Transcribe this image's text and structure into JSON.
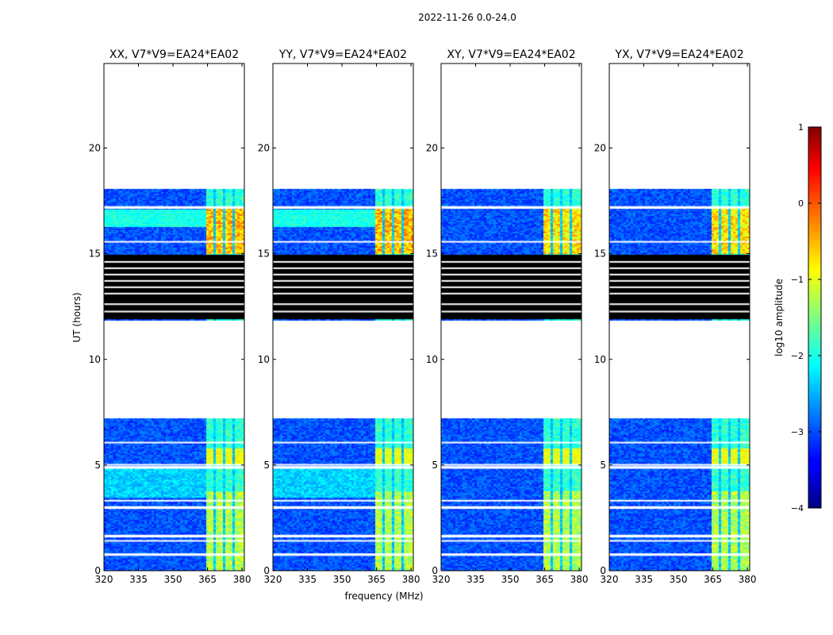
{
  "figure": {
    "suptitle": "2022-11-26 0.0-24.0",
    "xlabel": "frequency (MHz)",
    "ylabel": "UT (hours)"
  },
  "chart_data": {
    "type": "heatmap",
    "panels": [
      {
        "title": "XX, V7*V9=EA24*EA02",
        "pol": "XX",
        "cross": false
      },
      {
        "title": "YY, V7*V9=EA24*EA02",
        "pol": "YY",
        "cross": false
      },
      {
        "title": "XY, V7*V9=EA24*EA02",
        "pol": "XY",
        "cross": true
      },
      {
        "title": "YX, V7*V9=EA24*EA02",
        "pol": "YX",
        "cross": true
      }
    ],
    "x": {
      "min": 320,
      "max": 381,
      "ticks": [
        320,
        335,
        350,
        365,
        380
      ],
      "tick_labels": [
        "320",
        "335",
        "350",
        "365",
        "380"
      ]
    },
    "y": {
      "min": 0,
      "max": 24,
      "ticks": [
        0,
        5,
        10,
        15,
        20
      ],
      "tick_labels": [
        "0",
        "5",
        "10",
        "15",
        "20"
      ]
    },
    "data_ut_ranges": [
      [
        0,
        7.2
      ],
      [
        11.9,
        18.05
      ]
    ],
    "flagged_black_ut_range": [
      11.9,
      14.95
    ],
    "blank_ut_rows": [
      0.78,
      0.82,
      1.45,
      1.65,
      1.7,
      3.0,
      3.05,
      3.35,
      4.9,
      4.95,
      5.05,
      6.1,
      17.2,
      17.25,
      15.6
    ],
    "black_panel_white_rows": [
      12.3,
      12.65,
      13.15,
      13.45,
      13.75,
      14.05,
      14.35,
      14.65
    ],
    "bright_channel_band_mhz": [
      363.5,
      380
    ],
    "bright_channel_gaps_mhz": [
      367.8,
      372.0,
      376.0
    ],
    "colorbar": {
      "label": "log10 amplitude",
      "min": -4,
      "max": 1,
      "ticks": [
        1,
        0,
        -1,
        -2,
        -3,
        -4
      ],
      "tick_labels": [
        "1",
        "0",
        "−1",
        "−2",
        "−3",
        "−4"
      ],
      "colormap": "jet"
    }
  }
}
